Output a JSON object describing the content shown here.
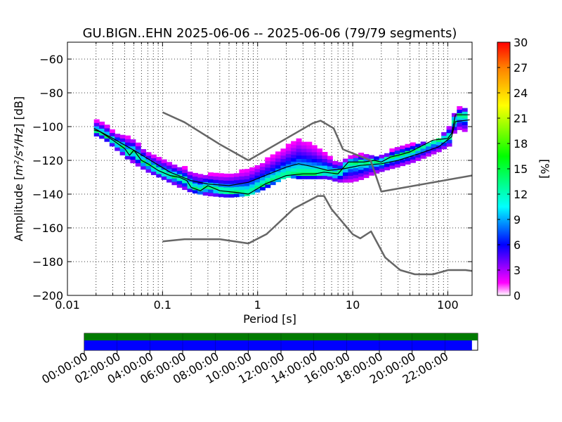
{
  "chart_data": {
    "type": "heatmap",
    "title": "GU.BIGN..EHN   2025-06-06 -- 2025-06-06  (79/79 segments)",
    "xlabel": "Period [s]",
    "ylabel_prefix": "Amplitude [",
    "ylabel_math": "m²/s⁴/Hz",
    "ylabel_suffix": "] [dB]",
    "xscale": "log",
    "xlim": [
      0.01,
      180
    ],
    "ylim": [
      -200,
      -50
    ],
    "grid": true,
    "xticks": [
      {
        "value": 0.01,
        "label": "0.01"
      },
      {
        "value": 0.1,
        "label": "0.1"
      },
      {
        "value": 1,
        "label": "1"
      },
      {
        "value": 10,
        "label": "10"
      },
      {
        "value": 100,
        "label": "100"
      }
    ],
    "yticks": [
      {
        "value": -60,
        "label": "−60"
      },
      {
        "value": -80,
        "label": "−80"
      },
      {
        "value": -100,
        "label": "−100"
      },
      {
        "value": -120,
        "label": "−120"
      },
      {
        "value": -140,
        "label": "−140"
      },
      {
        "value": -160,
        "label": "−160"
      },
      {
        "value": -180,
        "label": "−180"
      },
      {
        "value": -200,
        "label": "−200"
      }
    ],
    "colorbar": {
      "label": "[%]",
      "range": [
        0,
        30
      ],
      "ticks": [
        "0",
        "3",
        "6",
        "9",
        "12",
        "15",
        "18",
        "21",
        "24",
        "27",
        "30"
      ]
    },
    "ppsd_band": {
      "period": [
        0.019,
        0.025,
        0.03,
        0.04,
        0.05,
        0.07,
        0.1,
        0.15,
        0.2,
        0.3,
        0.5,
        0.8,
        1.2,
        2,
        2.7,
        4,
        5.5,
        7,
        10,
        13,
        17,
        22,
        30,
        45,
        60,
        80,
        100,
        110,
        120,
        150,
        160
      ],
      "upper": [
        -97,
        -99,
        -104,
        -106,
        -108,
        -116,
        -120,
        -124,
        -127,
        -129,
        -129,
        -126,
        -121,
        -113,
        -108,
        -112,
        -118,
        -122,
        -118,
        -117,
        -118,
        -117,
        -113,
        -111,
        -110,
        -108,
        -101,
        -99,
        -90,
        -89,
        -89
      ],
      "lower": [
        -105,
        -108,
        -112,
        -118,
        -122,
        -127,
        -131,
        -136,
        -139,
        -141,
        -142,
        -141,
        -137,
        -130,
        -131,
        -131,
        -131,
        -133,
        -133,
        -131,
        -128,
        -126,
        -124,
        -121,
        -118,
        -115,
        -112,
        -111,
        -101,
        -103,
        -103
      ]
    },
    "series": [
      {
        "role": "mode",
        "x": [
          0.019,
          0.022,
          0.03,
          0.04,
          0.045,
          0.05,
          0.06,
          0.07,
          0.09,
          0.12,
          0.15,
          0.18,
          0.2,
          0.25,
          0.3,
          0.4,
          0.6,
          0.8,
          1.2,
          2,
          3,
          4,
          5,
          7,
          9,
          13,
          17,
          20,
          25,
          30,
          40,
          55,
          70,
          100,
          110,
          120,
          170
        ],
        "y": [
          -102,
          -103,
          -108,
          -113,
          -117,
          -114,
          -120,
          -122,
          -126,
          -129,
          -130,
          -132,
          -136,
          -138,
          -135,
          -138,
          -139,
          -140,
          -134,
          -129,
          -128,
          -128,
          -127,
          -128,
          -121,
          -121,
          -120,
          -121,
          -118,
          -117,
          -115,
          -111,
          -108,
          -107,
          -104,
          -93,
          -93
        ]
      },
      {
        "role": "mean",
        "x": [
          0.019,
          0.03,
          0.05,
          0.08,
          0.12,
          0.2,
          0.3,
          0.5,
          0.8,
          1.2,
          2,
          2.7,
          4,
          5.5,
          8,
          12,
          20,
          30,
          50,
          80,
          110,
          120,
          170
        ],
        "y": [
          -101,
          -107,
          -114,
          -121,
          -127,
          -132,
          -134,
          -135,
          -133,
          -129,
          -124,
          -122,
          -124,
          -126,
          -125,
          -123,
          -122,
          -120,
          -116,
          -112,
          -106,
          -97,
          -96
        ]
      },
      {
        "role": "noise_model_high",
        "x": [
          0.1,
          0.17,
          0.4,
          0.8,
          3.8,
          4.6,
          6.3,
          7.9,
          15.4,
          20,
          354.8
        ],
        "y": [
          -91.5,
          -97.4,
          -110.5,
          -120,
          -98,
          -96.5,
          -101,
          -113.5,
          -120,
          -138.5,
          -126
        ]
      },
      {
        "role": "noise_model_low",
        "x": [
          0.1,
          0.17,
          0.4,
          0.8,
          1.24,
          2.4,
          4.3,
          5,
          6,
          10,
          12,
          15.6,
          21.9,
          31.6,
          45,
          70,
          101,
          154,
          328
        ],
        "y": [
          -168,
          -166.7,
          -166.7,
          -169.2,
          -163.7,
          -148.6,
          -141.1,
          -141.1,
          -149,
          -163.8,
          -166.2,
          -162.1,
          -177.5,
          -185,
          -187.5,
          -187.5,
          -185,
          -185,
          -187.5
        ]
      }
    ]
  },
  "timeline": {
    "labels": [
      "00:00:00",
      "02:00:00",
      "04:00:00",
      "06:00:00",
      "08:00:00",
      "10:00:00",
      "12:00:00",
      "14:00:00",
      "16:00:00",
      "18:00:00",
      "20:00:00",
      "22:00:00"
    ],
    "range_hours": [
      0,
      24
    ],
    "data_coverage_hours": [
      0,
      24
    ],
    "segment_coverage_hours": [
      0,
      23.65
    ],
    "colors": {
      "data": "#007a00",
      "segments": "#0000ff"
    }
  },
  "colors": {
    "noise_model": "#666666",
    "mode": "#000000",
    "mean": "#000000",
    "heatmap_colormap": "pqlx"
  }
}
